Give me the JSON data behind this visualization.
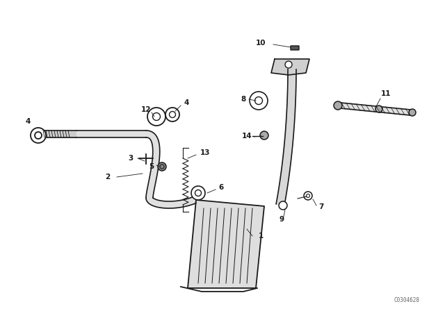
{
  "bg_color": "#ffffff",
  "line_color": "#1a1a1a",
  "figsize": [
    6.4,
    4.48
  ],
  "dpi": 100,
  "watermark": "C0304628",
  "xlim": [
    0,
    6.4
  ],
  "ylim": [
    0,
    4.48
  ]
}
